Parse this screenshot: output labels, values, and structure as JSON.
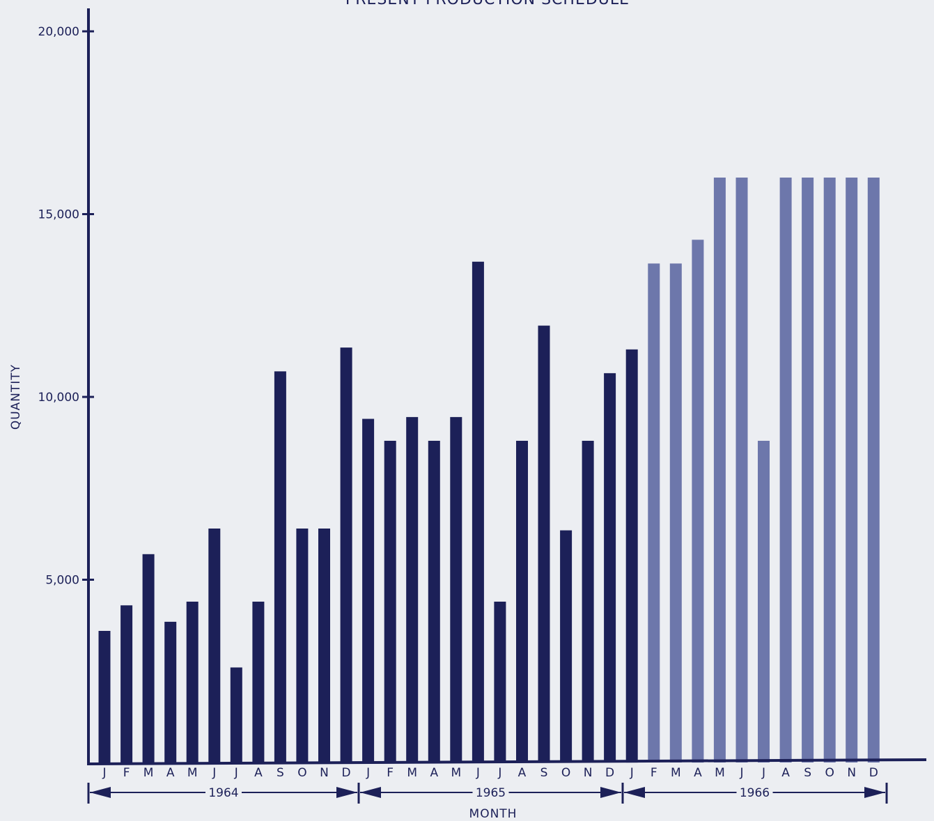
{
  "chart_data": {
    "type": "bar",
    "title": "PRESENT PRODUCTION SCHEDULE",
    "xlabel": "MONTH",
    "ylabel": "QUANTITY",
    "ylim": [
      0,
      20000
    ],
    "yticks": [
      5000,
      10000,
      15000,
      20000
    ],
    "ytick_labels": [
      "5,000",
      "10,000",
      "15,000",
      "20,000"
    ],
    "grid": false,
    "categories": [
      "J",
      "F",
      "M",
      "A",
      "M",
      "J",
      "J",
      "A",
      "S",
      "O",
      "N",
      "D",
      "J",
      "F",
      "M",
      "A",
      "M",
      "J",
      "J",
      "A",
      "S",
      "O",
      "N",
      "D",
      "J",
      "F",
      "M",
      "A",
      "M",
      "J",
      "J",
      "A",
      "S",
      "O",
      "N",
      "D"
    ],
    "years": [
      {
        "label": "1964",
        "start_index": 0,
        "end_index": 11
      },
      {
        "label": "1965",
        "start_index": 12,
        "end_index": 23
      },
      {
        "label": "1966",
        "start_index": 24,
        "end_index": 35
      }
    ],
    "values": [
      3600,
      4300,
      5700,
      3850,
      4400,
      6400,
      2600,
      4400,
      10700,
      6400,
      6400,
      11350,
      9400,
      8800,
      9450,
      8800,
      9450,
      13700,
      4400,
      8800,
      11950,
      6350,
      8800,
      10650,
      11300,
      13650,
      13650,
      14300,
      16000,
      16000,
      8800,
      16000,
      16000,
      16000,
      16000,
      16000
    ],
    "bar_colors": [
      "#1c2058",
      "#1c2058",
      "#1c2058",
      "#1c2058",
      "#1c2058",
      "#1c2058",
      "#1c2058",
      "#1c2058",
      "#1c2058",
      "#1c2058",
      "#1c2058",
      "#1c2058",
      "#1c2058",
      "#1c2058",
      "#1c2058",
      "#1c2058",
      "#1c2058",
      "#1c2058",
      "#1c2058",
      "#1c2058",
      "#1c2058",
      "#1c2058",
      "#1c2058",
      "#1c2058",
      "#1c2058",
      "#6d77ab",
      "#6d77ab",
      "#6d77ab",
      "#6d77ab",
      "#6d77ab",
      "#6d77ab",
      "#6d77ab",
      "#6d77ab",
      "#6d77ab",
      "#6d77ab",
      "#6d77ab"
    ]
  },
  "colors": {
    "ink": "#1c2058",
    "light_bar": "#6d77ab",
    "background": "#eceef2"
  }
}
